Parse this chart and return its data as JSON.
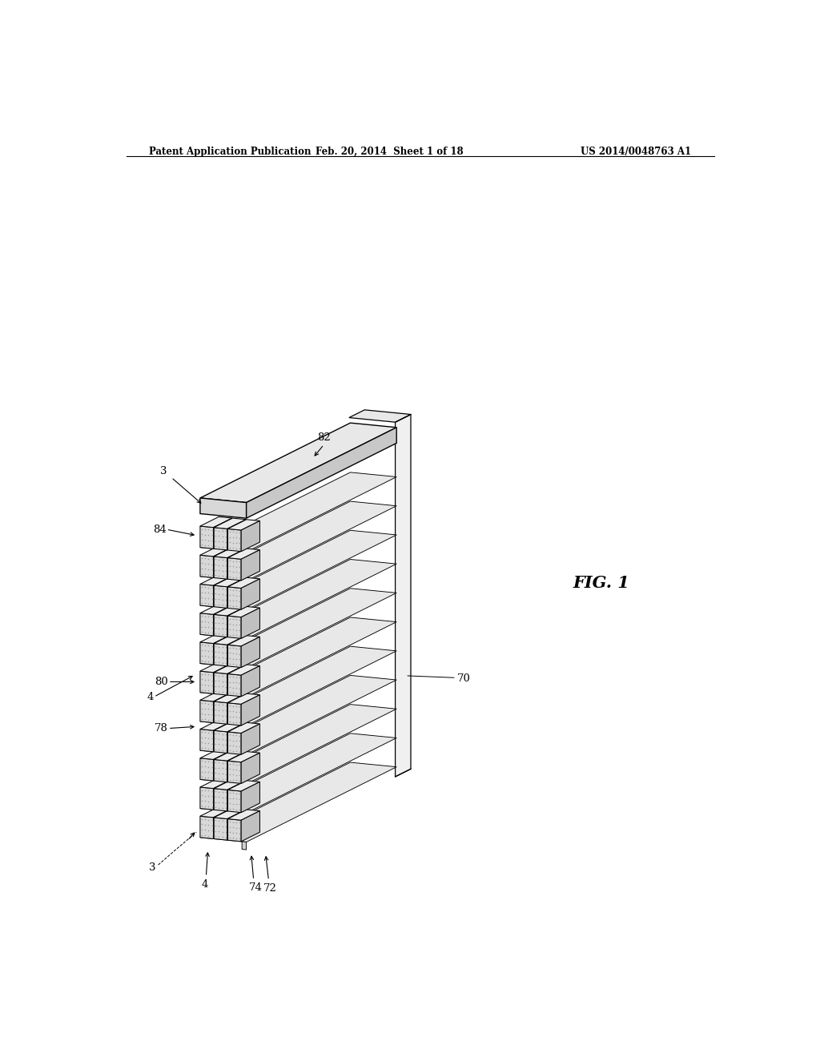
{
  "bg_color": "#ffffff",
  "line_color": "#000000",
  "header_left": "Patent Application Publication",
  "header_mid": "Feb. 20, 2014  Sheet 1 of 18",
  "header_right": "US 2014/0048763 A1",
  "fig_label": "FIG. 1",
  "n_rows": 11,
  "n_cols": 3,
  "cube_face_front": "#d8d8d8",
  "cube_face_top": "#ececec",
  "cube_face_right": "#c0c0c0",
  "wl_top_color": "#e8e8e8",
  "wl_front_color": "#d0d0d0",
  "panel_face_color": "#f0f0f0",
  "panel_side_color": "#e0e0e0",
  "dot_color": "#999999",
  "top_bar_top": "#e8e8e8",
  "top_bar_front": "#d8d8d8",
  "top_bar_right": "#c8c8c8"
}
